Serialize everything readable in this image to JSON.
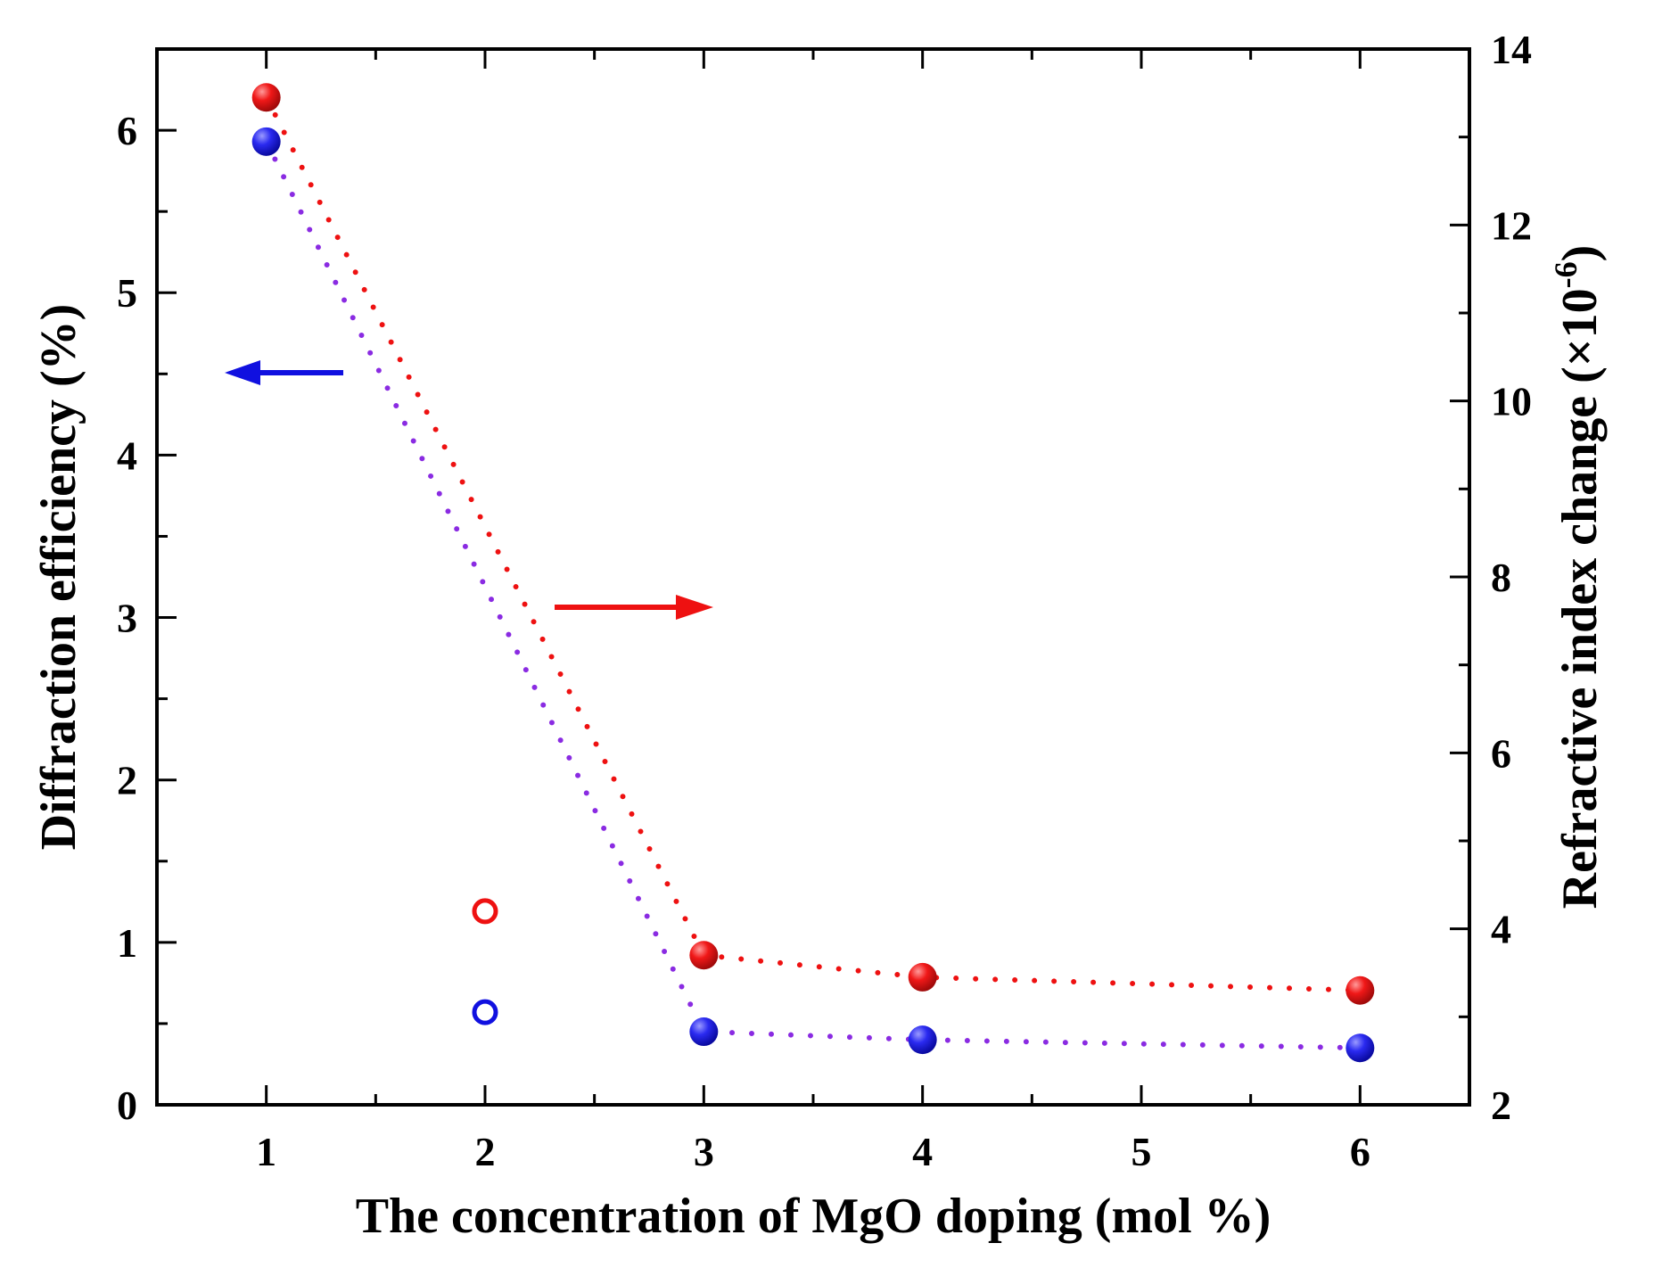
{
  "chart_data": {
    "type": "scatter",
    "xlabel": "The concentration of MgO doping (mol %)",
    "ylabel_left": "Diffraction efficiency (%)",
    "ylabel_right": {
      "main": "Refractive index change (×10",
      "exponent": "-6",
      "close": ")"
    },
    "x_ticks": [
      1,
      2,
      3,
      4,
      5,
      6
    ],
    "x_tick_labels": [
      "1",
      "2",
      "3",
      "4",
      "5",
      "6"
    ],
    "xlim": [
      0.5,
      6.5
    ],
    "ylim_left": [
      0,
      6.5
    ],
    "y_left_ticks": [
      0,
      1,
      2,
      3,
      4,
      5,
      6
    ],
    "y_left_tick_labels": [
      "0",
      "1",
      "2",
      "3",
      "4",
      "5",
      "6"
    ],
    "ylim_right": [
      2,
      14
    ],
    "y_right_ticks": [
      2,
      4,
      6,
      8,
      10,
      12,
      14
    ],
    "y_right_tick_labels": [
      "2",
      "4",
      "6",
      "8",
      "10",
      "12",
      "14"
    ],
    "series": [
      {
        "name": "Diffraction efficiency",
        "axis": "left",
        "color": "#1010e0",
        "line_color": "#8a2be2",
        "points": [
          {
            "x": 1,
            "y": 5.93,
            "filled": true
          },
          {
            "x": 2,
            "y": 0.57,
            "filled": false
          },
          {
            "x": 3,
            "y": 0.45,
            "filled": true
          },
          {
            "x": 4,
            "y": 0.4,
            "filled": true
          },
          {
            "x": 6,
            "y": 0.35,
            "filled": true
          }
        ]
      },
      {
        "name": "Refractive index change",
        "axis": "right",
        "color": "#ee1111",
        "line_color": "#ee1111",
        "points": [
          {
            "x": 1,
            "y": 13.45,
            "filled": true
          },
          {
            "x": 2,
            "y": 4.2,
            "filled": false
          },
          {
            "x": 3,
            "y": 3.7,
            "filled": true
          },
          {
            "x": 4,
            "y": 3.45,
            "filled": true
          },
          {
            "x": 6,
            "y": 3.3,
            "filled": true
          }
        ]
      }
    ],
    "annotations": [
      {
        "type": "arrow",
        "direction": "left",
        "color": "#1010e0",
        "indicates": "left axis"
      },
      {
        "type": "arrow",
        "direction": "right",
        "color": "#ee1111",
        "indicates": "right axis"
      }
    ]
  }
}
